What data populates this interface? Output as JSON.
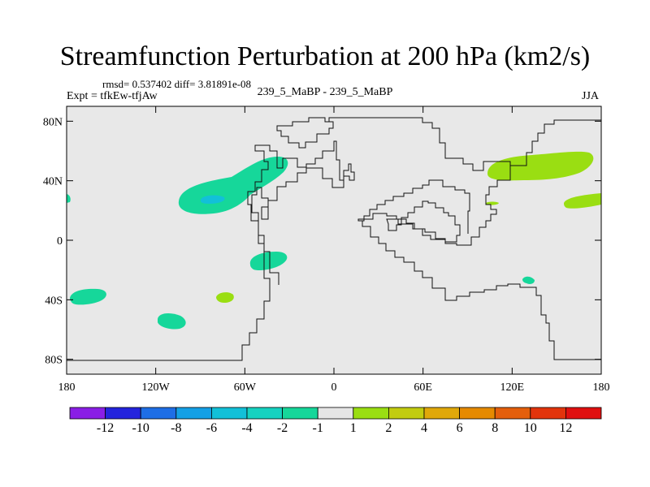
{
  "header": {
    "title": "Streamfunction Perturbation at 200 hPa (km2/s)",
    "stats": "rmsd= 0.537402 diff= 3.81891e-08",
    "experiment": "Expt = tfkEw-tfjAw",
    "runs": "239_5_MaBP - 239_5_MaBP",
    "season": "JJA"
  },
  "chart_data": {
    "type": "heatmap",
    "title": "Streamfunction Perturbation at 200 hPa (km2/s)",
    "xlabel": "",
    "ylabel": "",
    "xlim": [
      180,
      540
    ],
    "ylim": [
      -90,
      90
    ],
    "x_ticks": [
      {
        "value": 180,
        "label": "180"
      },
      {
        "value": 240,
        "label": "120W"
      },
      {
        "value": 300,
        "label": "60W"
      },
      {
        "value": 360,
        "label": "0"
      },
      {
        "value": 420,
        "label": "60E"
      },
      {
        "value": 480,
        "label": "120E"
      },
      {
        "value": 540,
        "label": "180"
      }
    ],
    "y_ticks": [
      {
        "value": 80,
        "label": "80N"
      },
      {
        "value": 40,
        "label": "40N"
      },
      {
        "value": 0,
        "label": "0"
      },
      {
        "value": -40,
        "label": "40S"
      },
      {
        "value": -80,
        "label": "80S"
      }
    ],
    "colorbar": {
      "labels": [
        "-12",
        "-10",
        "-8",
        "-6",
        "-4",
        "-2",
        "-1",
        "1",
        "2",
        "4",
        "6",
        "8",
        "10",
        "12"
      ],
      "colors": [
        "#8a1ee6",
        "#2424dc",
        "#1e6ee6",
        "#14a0e6",
        "#12c0d8",
        "#16d2c0",
        "#16d79a",
        "#e6e6e6",
        "#9ade12",
        "#c2cc10",
        "#e0a80a",
        "#e68a00",
        "#e45f0c",
        "#e2340c",
        "#e01010"
      ]
    },
    "background_color": "#e8e8e8",
    "series": [
      {
        "value_range": "-2 to -1",
        "color": "#16d79a",
        "centroids": [
          [
            -52,
            32
          ],
          [
            -52,
            33
          ],
          [
            -60,
            -14
          ],
          [
            -165,
            -39
          ],
          [
            -115,
            -53
          ],
          [
            -178,
            28
          ],
          [
            133,
            -26
          ]
        ]
      },
      {
        "value_range": "-4 to -2",
        "color": "#12c0d8",
        "centroids": [
          [
            -81,
            27
          ]
        ]
      },
      {
        "value_range": "1 to 2",
        "color": "#9ade12",
        "centroids": [
          [
            145,
            48
          ],
          [
            170,
            26
          ],
          [
            -72,
            -39
          ],
          [
            115,
            24
          ]
        ]
      }
    ]
  }
}
